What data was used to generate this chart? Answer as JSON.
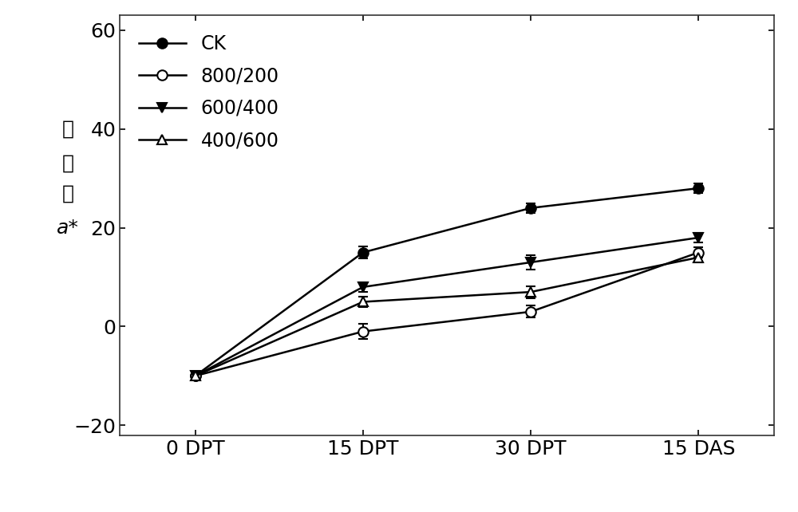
{
  "x_labels": [
    "0 DPT",
    "15 DPT",
    "30 DPT",
    "15 DAS"
  ],
  "x_positions": [
    0,
    1,
    2,
    3
  ],
  "series": [
    {
      "label": "CK",
      "values": [
        -10.0,
        15.0,
        24.0,
        28.0
      ],
      "errors": [
        0.5,
        1.2,
        1.0,
        1.0
      ],
      "marker": "o",
      "marker_filled": true,
      "color": "#000000",
      "linestyle": "-"
    },
    {
      "label": "800/200",
      "values": [
        -10.0,
        -1.0,
        3.0,
        15.0
      ],
      "errors": [
        0.5,
        1.5,
        1.2,
        1.0
      ],
      "marker": "o",
      "marker_filled": false,
      "color": "#000000",
      "linestyle": "-"
    },
    {
      "label": "600/400",
      "values": [
        -10.0,
        8.0,
        13.0,
        18.0
      ],
      "errors": [
        0.5,
        1.0,
        1.5,
        1.0
      ],
      "marker": "v",
      "marker_filled": true,
      "color": "#000000",
      "linestyle": "-"
    },
    {
      "label": "400/600",
      "values": [
        -10.0,
        5.0,
        7.0,
        14.0
      ],
      "errors": [
        0.5,
        1.0,
        1.2,
        1.0
      ],
      "marker": "^",
      "marker_filled": false,
      "color": "#000000",
      "linestyle": "-"
    }
  ],
  "ylim": [
    -22,
    63
  ],
  "yticks": [
    -20,
    0,
    20,
    40,
    60
  ],
  "ylabel_chinese": [
    "色",
    "差",
    "値"
  ],
  "ylabel_italic": "a*",
  "background_color": "#ffffff",
  "plot_bg_color": "#ffffff",
  "legend_loc": "upper left",
  "markersize": 9,
  "linewidth": 1.8,
  "capsize": 4,
  "elinewidth": 1.5,
  "tick_fontsize": 18,
  "legend_fontsize": 17
}
